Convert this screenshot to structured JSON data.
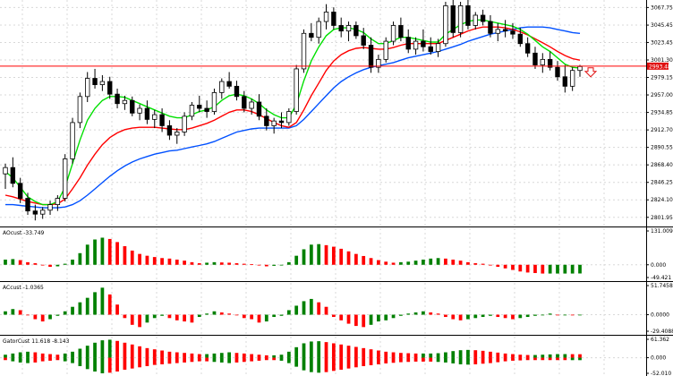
{
  "chart_data": {
    "type": "candlestick",
    "colors": {
      "background": "#ffffff",
      "grid": "#d8d8d8",
      "candle": "#000000",
      "ma_fast": "#00e000",
      "ma_mid": "#ff0000",
      "ma_slow": "#0050ff",
      "price_line": "#ff0000",
      "price_tag": "#e01010",
      "hist_up": "#008000",
      "hist_down": "#ff0000"
    },
    "grid": true,
    "main": {
      "y_ticks": [
        "3067.75",
        "3045.45",
        "3023.45",
        "3001.30",
        "2979.15",
        "2957.00",
        "2934.85",
        "2912.70",
        "2890.55",
        "2868.40",
        "2846.25",
        "2824.10",
        "2801.95"
      ],
      "ylim": [
        2796,
        3075
      ],
      "current_price": "2993.48",
      "current_price_value": 2993.48,
      "candles": [
        [
          2857,
          2870,
          2838,
          2865
        ],
        [
          2865,
          2878,
          2840,
          2845
        ],
        [
          2845,
          2852,
          2820,
          2826
        ],
        [
          2826,
          2833,
          2805,
          2810
        ],
        [
          2810,
          2818,
          2798,
          2806
        ],
        [
          2806,
          2815,
          2800,
          2811
        ],
        [
          2811,
          2823,
          2805,
          2818
        ],
        [
          2818,
          2830,
          2810,
          2826
        ],
        [
          2826,
          2882,
          2822,
          2876
        ],
        [
          2876,
          2928,
          2870,
          2922
        ],
        [
          2922,
          2960,
          2915,
          2955
        ],
        [
          2955,
          2986,
          2948,
          2978
        ],
        [
          2978,
          2990,
          2965,
          2970
        ],
        [
          2970,
          2982,
          2962,
          2974
        ],
        [
          2974,
          2980,
          2952,
          2958
        ],
        [
          2958,
          2965,
          2940,
          2946
        ],
        [
          2946,
          2956,
          2938,
          2950
        ],
        [
          2950,
          2955,
          2930,
          2934
        ],
        [
          2934,
          2945,
          2925,
          2940
        ],
        [
          2940,
          2950,
          2920,
          2926
        ],
        [
          2926,
          2938,
          2915,
          2932
        ],
        [
          2932,
          2940,
          2910,
          2918
        ],
        [
          2918,
          2925,
          2900,
          2906
        ],
        [
          2906,
          2915,
          2895,
          2910
        ],
        [
          2910,
          2935,
          2905,
          2930
        ],
        [
          2930,
          2948,
          2925,
          2944
        ],
        [
          2944,
          2956,
          2935,
          2940
        ],
        [
          2940,
          2950,
          2928,
          2936
        ],
        [
          2936,
          2965,
          2932,
          2960
        ],
        [
          2960,
          2978,
          2952,
          2974
        ],
        [
          2974,
          2986,
          2965,
          2968
        ],
        [
          2968,
          2975,
          2950,
          2955
        ],
        [
          2955,
          2962,
          2935,
          2940
        ],
        [
          2940,
          2952,
          2932,
          2948
        ],
        [
          2948,
          2958,
          2925,
          2930
        ],
        [
          2930,
          2940,
          2912,
          2918
        ],
        [
          2918,
          2928,
          2908,
          2924
        ],
        [
          2924,
          2935,
          2915,
          2922
        ],
        [
          2922,
          2940,
          2918,
          2936
        ],
        [
          2936,
          2995,
          2932,
          2990
        ],
        [
          2990,
          3040,
          2985,
          3035
        ],
        [
          3035,
          3048,
          3025,
          3030
        ],
        [
          3030,
          3055,
          3022,
          3050
        ],
        [
          3050,
          3072,
          3040,
          3062
        ],
        [
          3062,
          3068,
          3040,
          3045
        ],
        [
          3045,
          3055,
          3030,
          3038
        ],
        [
          3038,
          3050,
          3025,
          3045
        ],
        [
          3045,
          3050,
          3028,
          3032
        ],
        [
          3032,
          3042,
          3015,
          3020
        ],
        [
          3020,
          3030,
          2985,
          2992
        ],
        [
          2992,
          3008,
          2985,
          3002
        ],
        [
          3002,
          3030,
          2998,
          3025
        ],
        [
          3025,
          3050,
          3020,
          3045
        ],
        [
          3045,
          3055,
          3025,
          3030
        ],
        [
          3030,
          3040,
          3010,
          3015
        ],
        [
          3015,
          3030,
          3008,
          3025
        ],
        [
          3025,
          3040,
          3012,
          3018
        ],
        [
          3018,
          3030,
          3008,
          3012
        ],
        [
          3012,
          3028,
          3005,
          3022
        ],
        [
          3022,
          3075,
          3018,
          3070
        ],
        [
          3070,
          3080,
          3030,
          3036
        ],
        [
          3036,
          3075,
          3030,
          3070
        ],
        [
          3070,
          3078,
          3040,
          3045
        ],
        [
          3045,
          3062,
          3040,
          3058
        ],
        [
          3058,
          3065,
          3045,
          3050
        ],
        [
          3050,
          3058,
          3030,
          3035
        ],
        [
          3035,
          3048,
          3025,
          3040
        ],
        [
          3040,
          3052,
          3030,
          3038
        ],
        [
          3038,
          3048,
          3028,
          3034
        ],
        [
          3034,
          3042,
          3018,
          3022
        ],
        [
          3022,
          3030,
          3005,
          3010
        ],
        [
          3010,
          3018,
          2990,
          2995
        ],
        [
          2995,
          3010,
          2985,
          3002
        ],
        [
          3002,
          3012,
          2988,
          2992
        ],
        [
          2992,
          3000,
          2975,
          2980
        ],
        [
          2980,
          2995,
          2960,
          2968
        ],
        [
          2968,
          2992,
          2962,
          2988
        ],
        [
          2988,
          2995,
          2980,
          2993
        ]
      ],
      "ma_fast": [
        2860,
        2852,
        2840,
        2828,
        2822,
        2818,
        2818,
        2822,
        2840,
        2870,
        2900,
        2925,
        2940,
        2950,
        2955,
        2955,
        2954,
        2950,
        2946,
        2942,
        2938,
        2934,
        2930,
        2928,
        2928,
        2932,
        2936,
        2938,
        2942,
        2950,
        2956,
        2958,
        2956,
        2952,
        2946,
        2938,
        2932,
        2928,
        2928,
        2945,
        2975,
        3000,
        3018,
        3032,
        3040,
        3042,
        3042,
        3040,
        3036,
        3028,
        3022,
        3022,
        3026,
        3030,
        3030,
        3028,
        3026,
        3024,
        3024,
        3034,
        3040,
        3046,
        3050,
        3052,
        3052,
        3050,
        3048,
        3046,
        3044,
        3040,
        3034,
        3026,
        3018,
        3012,
        3004,
        2996,
        2992,
        2991
      ],
      "ma_mid": [
        2830,
        2828,
        2825,
        2822,
        2820,
        2818,
        2818,
        2819,
        2825,
        2838,
        2852,
        2868,
        2882,
        2894,
        2903,
        2909,
        2913,
        2915,
        2916,
        2916,
        2916,
        2915,
        2914,
        2913,
        2913,
        2915,
        2918,
        2921,
        2925,
        2930,
        2935,
        2938,
        2938,
        2936,
        2932,
        2927,
        2922,
        2918,
        2916,
        2922,
        2938,
        2956,
        2972,
        2988,
        3000,
        3008,
        3013,
        3016,
        3017,
        3016,
        3015,
        3015,
        3017,
        3020,
        3022,
        3022,
        3022,
        3022,
        3022,
        3026,
        3030,
        3034,
        3038,
        3041,
        3043,
        3043,
        3043,
        3042,
        3040,
        3037,
        3033,
        3028,
        3023,
        3018,
        3012,
        3007,
        3003,
        3001
      ],
      "ma_slow": [
        2818,
        2818,
        2817,
        2816,
        2815,
        2814,
        2814,
        2814,
        2815,
        2818,
        2823,
        2830,
        2838,
        2846,
        2854,
        2861,
        2867,
        2872,
        2876,
        2879,
        2882,
        2884,
        2886,
        2887,
        2889,
        2891,
        2893,
        2895,
        2898,
        2902,
        2906,
        2910,
        2912,
        2914,
        2915,
        2915,
        2915,
        2915,
        2915,
        2918,
        2926,
        2936,
        2946,
        2956,
        2966,
        2974,
        2980,
        2985,
        2989,
        2992,
        2994,
        2996,
        2998,
        3001,
        3004,
        3006,
        3008,
        3010,
        3012,
        3015,
        3018,
        3021,
        3025,
        3028,
        3031,
        3034,
        3036,
        3038,
        3040,
        3042,
        3043,
        3043,
        3043,
        3042,
        3040,
        3038,
        3036,
        3035
      ]
    },
    "panels": [
      {
        "label": "AOcust -33.749",
        "y_ticks": [
          "131.009",
          "0.000",
          "-49.421"
        ],
        "ylim": [
          -49.421,
          131.009
        ],
        "values": [
          20,
          22,
          18,
          10,
          6,
          -2,
          -8,
          -6,
          4,
          20,
          45,
          78,
          98,
          105,
          100,
          88,
          72,
          55,
          42,
          35,
          30,
          26,
          24,
          20,
          16,
          10,
          6,
          8,
          10,
          9,
          8,
          6,
          4,
          2,
          -2,
          -6,
          -4,
          -2,
          10,
          35,
          60,
          78,
          80,
          76,
          70,
          62,
          52,
          42,
          34,
          26,
          18,
          12,
          8,
          10,
          12,
          16,
          20,
          24,
          26,
          24,
          20,
          16,
          10,
          6,
          4,
          -2,
          -8,
          -14,
          -20,
          -26,
          -30,
          -32,
          -34,
          -34,
          -34,
          -34,
          -34,
          -33.749
        ]
      },
      {
        "label": "ACcust -1.0365",
        "y_ticks": [
          "51.7458",
          "0.0000",
          "-29.4088"
        ],
        "ylim": [
          -29.4088,
          51.7458
        ],
        "values": [
          6,
          10,
          8,
          0,
          -8,
          -12,
          -8,
          -2,
          6,
          14,
          22,
          30,
          40,
          48,
          36,
          18,
          -6,
          -18,
          -22,
          -14,
          -6,
          -2,
          -6,
          -10,
          -12,
          -14,
          -4,
          2,
          6,
          4,
          2,
          0,
          -6,
          -8,
          -14,
          -12,
          -4,
          -2,
          8,
          16,
          24,
          28,
          22,
          14,
          -4,
          -10,
          -16,
          -20,
          -22,
          -18,
          -12,
          -10,
          -6,
          -2,
          2,
          4,
          6,
          4,
          2,
          -4,
          -8,
          -10,
          -8,
          -6,
          -4,
          -2,
          -4,
          -6,
          -8,
          -6,
          -4,
          -2,
          0,
          2,
          -1,
          -1,
          -1.0365,
          -1.0365
        ]
      },
      {
        "label": "GatorCust 11.618 -8.143",
        "y_ticks": [
          "61.362",
          "0.000",
          "-52.010"
        ],
        "ylim": [
          -52.01,
          61.362
        ],
        "upper": [
          10,
          14,
          18,
          20,
          18,
          14,
          12,
          10,
          14,
          20,
          30,
          40,
          50,
          58,
          60,
          56,
          50,
          44,
          38,
          32,
          28,
          24,
          20,
          18,
          16,
          14,
          12,
          12,
          14,
          16,
          18,
          16,
          14,
          12,
          10,
          8,
          8,
          10,
          20,
          35,
          48,
          54,
          55,
          52,
          48,
          44,
          40,
          36,
          32,
          28,
          24,
          20,
          18,
          16,
          15,
          14,
          14,
          14,
          15,
          18,
          22,
          25,
          26,
          25,
          23,
          20,
          17,
          14,
          12,
          10,
          9,
          9,
          10,
          11,
          12,
          12,
          11.8,
          11.618
        ],
        "lower": [
          -8,
          -12,
          -16,
          -18,
          -16,
          -12,
          -10,
          -8,
          -12,
          -18,
          -28,
          -38,
          -46,
          -52,
          -50,
          -46,
          -40,
          -36,
          -32,
          -28,
          -24,
          -22,
          -20,
          -18,
          -16,
          -14,
          -12,
          -12,
          -14,
          -16,
          -18,
          -16,
          -14,
          -12,
          -10,
          -8,
          -8,
          -10,
          -18,
          -30,
          -42,
          -48,
          -50,
          -48,
          -44,
          -40,
          -36,
          -32,
          -28,
          -25,
          -22,
          -19,
          -17,
          -15,
          -14,
          -13,
          -13,
          -13,
          -14,
          -16,
          -19,
          -22,
          -23,
          -22,
          -20,
          -18,
          -15,
          -12,
          -10,
          -9,
          -8,
          -8,
          -8,
          -8,
          -8,
          -8,
          -8.1,
          -8.143
        ]
      }
    ]
  }
}
